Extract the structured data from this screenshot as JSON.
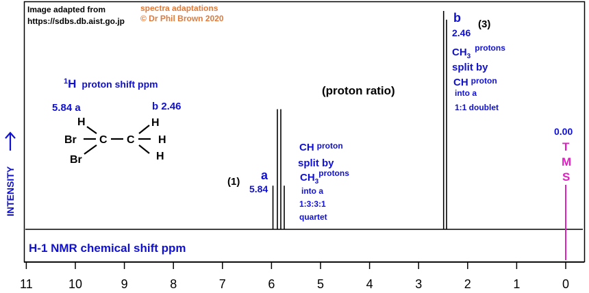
{
  "header": {
    "source_line1": "Image adapted from",
    "source_line2": "https://sdbs.db.aist.go.jp",
    "credit_line1": "spectra adaptations",
    "credit_line2": "© Dr Phil Brown 2020"
  },
  "colors": {
    "blue": "#1010d0",
    "black": "#000000",
    "orange": "#e07a3a",
    "magenta": "#e020c0"
  },
  "chart_data": {
    "type": "line",
    "xlabel": "H-1 NMR chemical shift  ppm",
    "ylabel": "INTENSITY",
    "x_reversed": true,
    "xlim": [
      11,
      0
    ],
    "xticks": [
      11,
      10,
      9,
      8,
      7,
      6,
      5,
      4,
      3,
      2,
      1,
      0
    ],
    "grid": false,
    "peaks": [
      {
        "group": "a",
        "shift": 5.84,
        "multiplicity": "quartet",
        "lines": [
          {
            "ppm": 5.97,
            "intensity": 0.2
          },
          {
            "ppm": 5.88,
            "intensity": 0.55
          },
          {
            "ppm": 5.81,
            "intensity": 0.55
          },
          {
            "ppm": 5.74,
            "intensity": 0.2
          }
        ]
      },
      {
        "group": "b",
        "shift": 2.46,
        "multiplicity": "doublet",
        "lines": [
          {
            "ppm": 2.49,
            "intensity": 1.0
          },
          {
            "ppm": 2.43,
            "intensity": 0.96
          }
        ]
      },
      {
        "group": "TMS",
        "shift": 0.0,
        "multiplicity": "reference",
        "lines": [
          {
            "ppm": 0.0,
            "intensity": 0.03
          }
        ]
      }
    ],
    "annotations": {
      "proton_ratio_title": "(proton ratio)",
      "ratio_a": "(1)",
      "ratio_b": "(3)",
      "peak_a_letter": "a",
      "peak_a_shift": "5.84",
      "peak_b_letter": "b",
      "peak_b_shift": "2.46",
      "a_desc": {
        "l1": "CH",
        "l1s": "proton",
        "l2": "split by",
        "l3": "CH",
        "l3sub": "3",
        "l3s": "protons",
        "l4": "into a",
        "l5": "1:3:3:1",
        "l6": "quartet"
      },
      "b_desc": {
        "l1": "CH",
        "l1sub": "3",
        "l1s": "protons",
        "l2": "split by",
        "l3": "CH",
        "l3s": "proton",
        "l4": "into a",
        "l5": "1:1 doublet"
      },
      "tms_shift": "0.00",
      "tms_letters": [
        "T",
        "M",
        "S"
      ]
    }
  },
  "molecule": {
    "title_sup": "1",
    "title_main": "H",
    "title_rest": "proton shift  ppm",
    "label_a": "5.84 a",
    "label_b": "b  2.46",
    "atoms": {
      "br1": "Br",
      "br2": "Br",
      "c1": "C",
      "c2": "C",
      "h_a": "H",
      "h1": "H",
      "h2": "H",
      "h3": "H"
    },
    "bond": "—"
  }
}
